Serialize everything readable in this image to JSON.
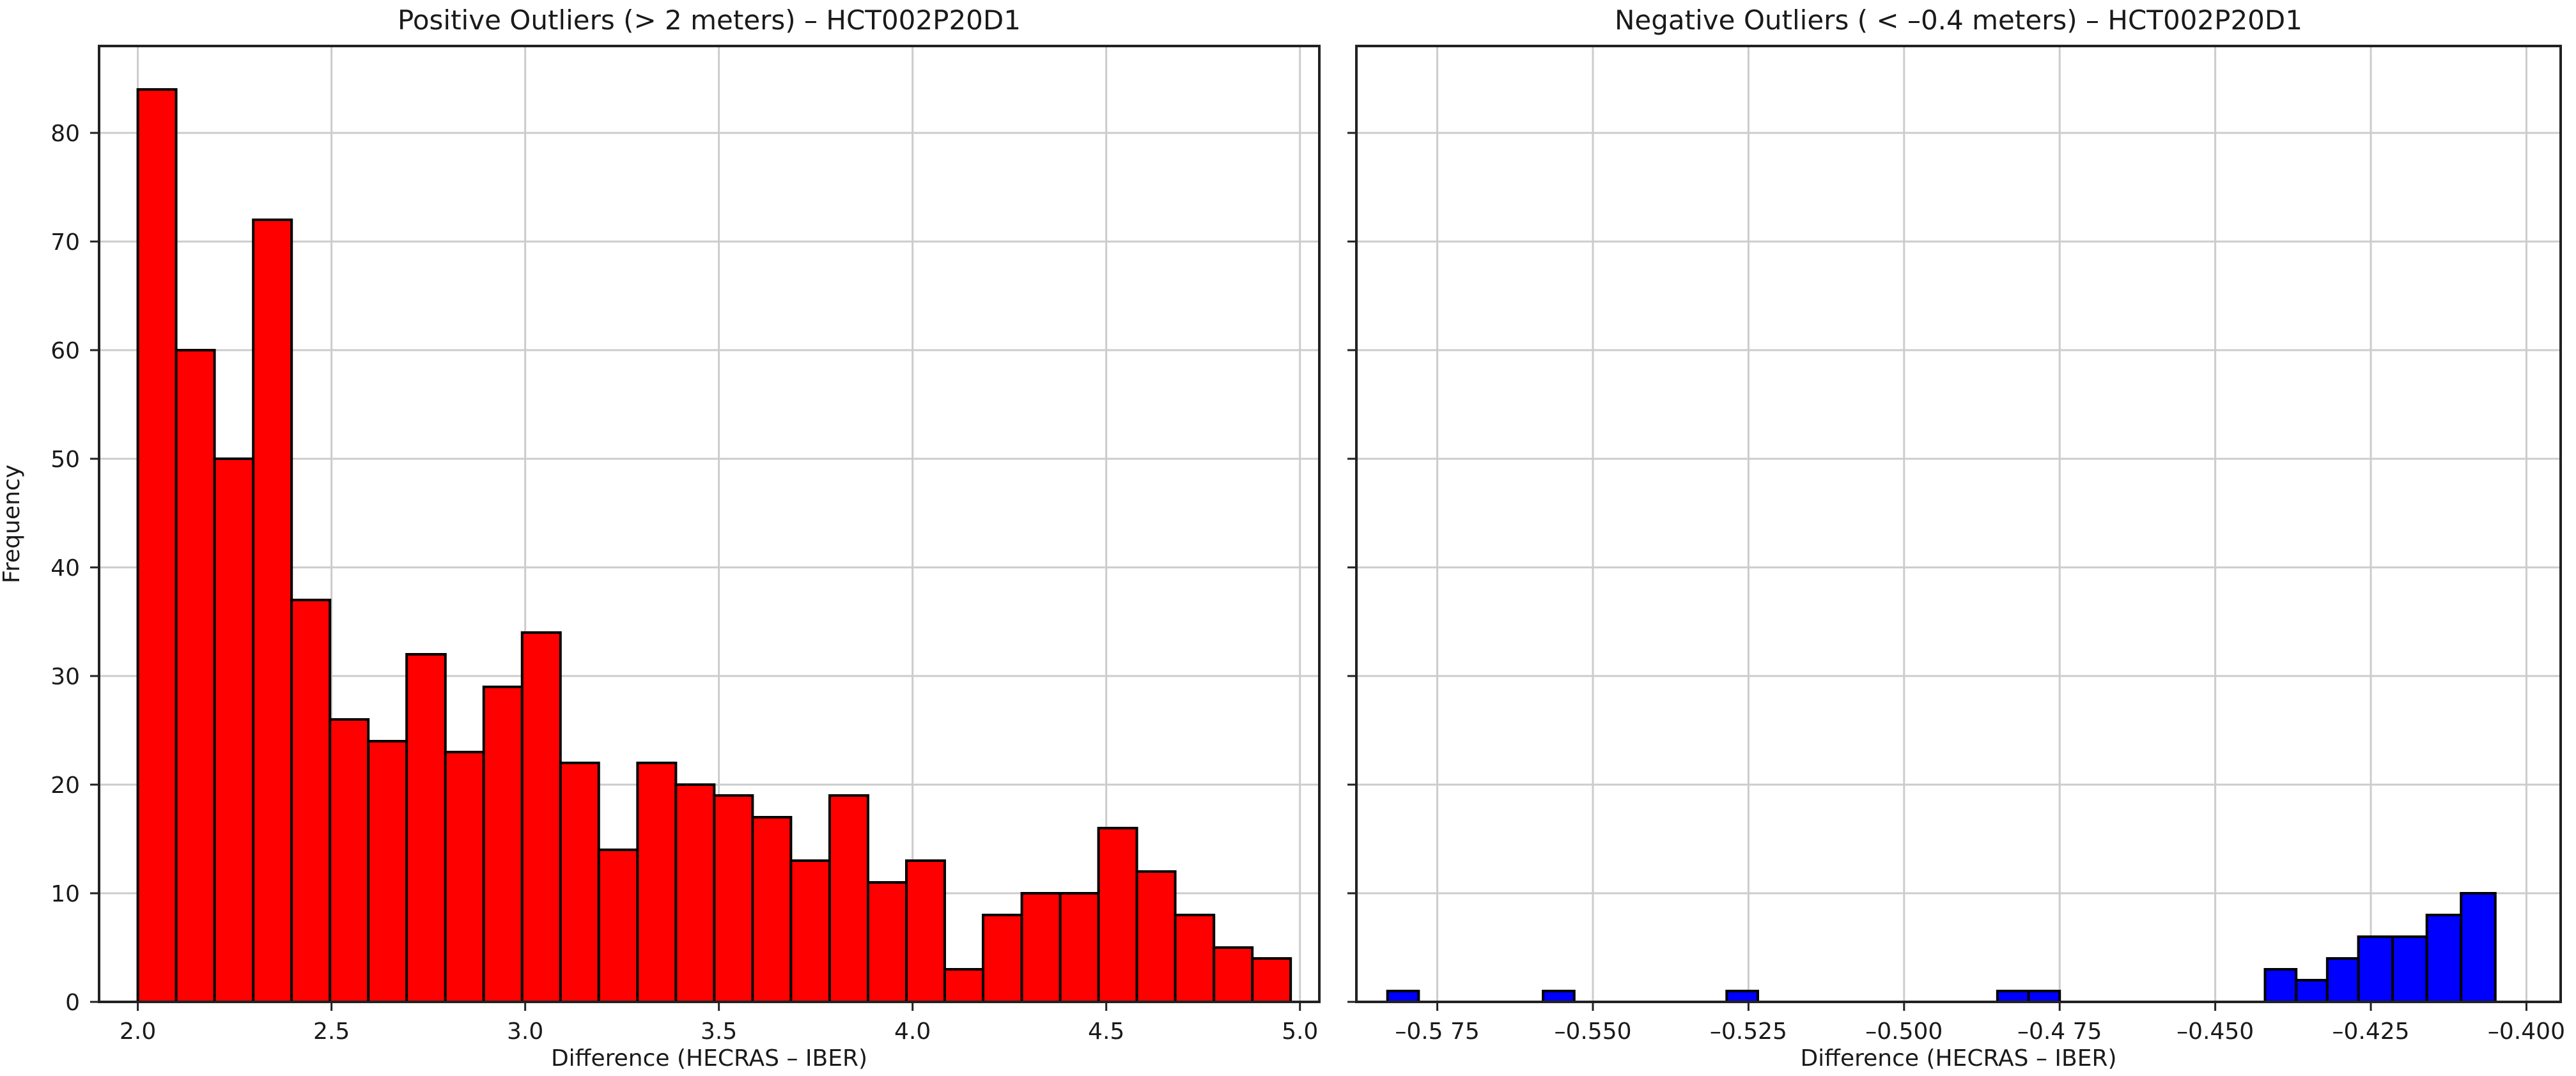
{
  "chart_data": [
    {
      "type": "bar",
      "title": "Positive Outliers (> 2 meters) – HCT002P20D1",
      "xlabel": "Difference (HECRAS – IBER)",
      "ylabel": "Frequency",
      "xlim": [
        1.9,
        5.05
      ],
      "ylim": [
        0,
        88
      ],
      "x_ticks": [
        "2.0",
        "2.5",
        "3.0",
        "3.5",
        "4.0",
        "4.5",
        "5.0"
      ],
      "x_tick_values": [
        2.0,
        2.5,
        3.0,
        3.5,
        4.0,
        4.5,
        5.0
      ],
      "y_ticks": [
        "0",
        "10",
        "20",
        "30",
        "40",
        "50",
        "60",
        "70",
        "80"
      ],
      "y_tick_values": [
        0,
        10,
        20,
        30,
        40,
        50,
        60,
        70,
        80
      ],
      "grid": true,
      "color": "#ff0000",
      "bins": [
        {
          "start": 2.0,
          "end": 2.099,
          "count": 84
        },
        {
          "start": 2.099,
          "end": 2.198,
          "count": 60
        },
        {
          "start": 2.198,
          "end": 2.298,
          "count": 50
        },
        {
          "start": 2.298,
          "end": 2.397,
          "count": 72
        },
        {
          "start": 2.397,
          "end": 2.496,
          "count": 37
        },
        {
          "start": 2.496,
          "end": 2.595,
          "count": 26
        },
        {
          "start": 2.595,
          "end": 2.694,
          "count": 24
        },
        {
          "start": 2.694,
          "end": 2.794,
          "count": 32
        },
        {
          "start": 2.794,
          "end": 2.893,
          "count": 23
        },
        {
          "start": 2.893,
          "end": 2.992,
          "count": 29
        },
        {
          "start": 2.992,
          "end": 3.091,
          "count": 34
        },
        {
          "start": 3.091,
          "end": 3.19,
          "count": 22
        },
        {
          "start": 3.19,
          "end": 3.29,
          "count": 14
        },
        {
          "start": 3.29,
          "end": 3.389,
          "count": 22
        },
        {
          "start": 3.389,
          "end": 3.488,
          "count": 20
        },
        {
          "start": 3.488,
          "end": 3.587,
          "count": 19
        },
        {
          "start": 3.587,
          "end": 3.686,
          "count": 17
        },
        {
          "start": 3.686,
          "end": 3.786,
          "count": 13
        },
        {
          "start": 3.786,
          "end": 3.885,
          "count": 19
        },
        {
          "start": 3.885,
          "end": 3.984,
          "count": 11
        },
        {
          "start": 3.984,
          "end": 4.083,
          "count": 13
        },
        {
          "start": 4.083,
          "end": 4.182,
          "count": 3
        },
        {
          "start": 4.182,
          "end": 4.282,
          "count": 8
        },
        {
          "start": 4.282,
          "end": 4.381,
          "count": 10
        },
        {
          "start": 4.381,
          "end": 4.48,
          "count": 10
        },
        {
          "start": 4.48,
          "end": 4.579,
          "count": 16
        },
        {
          "start": 4.579,
          "end": 4.678,
          "count": 12
        },
        {
          "start": 4.678,
          "end": 4.778,
          "count": 8
        },
        {
          "start": 4.778,
          "end": 4.877,
          "count": 5
        },
        {
          "start": 4.877,
          "end": 4.976,
          "count": 4
        }
      ]
    },
    {
      "type": "bar",
      "title": "Negative Outliers ( < –0.4 meters) – HCT002P20D1",
      "xlabel": "Difference (HECRAS – IBER)",
      "ylabel": "",
      "xlim": [
        -0.588,
        -0.3945
      ],
      "ylim": [
        0,
        88
      ],
      "x_ticks": [
        "–0.5 75",
        "–0.550",
        "–0.525",
        "–0.500",
        "–0.4 75",
        "–0.450",
        "–0.425",
        "–0.400"
      ],
      "x_tick_values": [
        -0.575,
        -0.55,
        -0.525,
        -0.5,
        -0.475,
        -0.45,
        -0.425,
        -0.4
      ],
      "y_tick_values": [
        0,
        10,
        20,
        30,
        40,
        50,
        60,
        70,
        80
      ],
      "grid": true,
      "color": "#0000ff",
      "bins": [
        {
          "start": -0.583,
          "end": -0.578,
          "count": 1
        },
        {
          "start": -0.558,
          "end": -0.553,
          "count": 1
        },
        {
          "start": -0.5285,
          "end": -0.5235,
          "count": 1
        },
        {
          "start": -0.485,
          "end": -0.48,
          "count": 1
        },
        {
          "start": -0.48,
          "end": -0.475,
          "count": 1
        },
        {
          "start": -0.442,
          "end": -0.437,
          "count": 3
        },
        {
          "start": -0.437,
          "end": -0.432,
          "count": 2
        },
        {
          "start": -0.432,
          "end": -0.427,
          "count": 4
        },
        {
          "start": -0.427,
          "end": -0.4215,
          "count": 6
        },
        {
          "start": -0.4215,
          "end": -0.416,
          "count": 6
        },
        {
          "start": -0.416,
          "end": -0.4105,
          "count": 8
        },
        {
          "start": -0.4105,
          "end": -0.405,
          "count": 10
        }
      ]
    }
  ]
}
